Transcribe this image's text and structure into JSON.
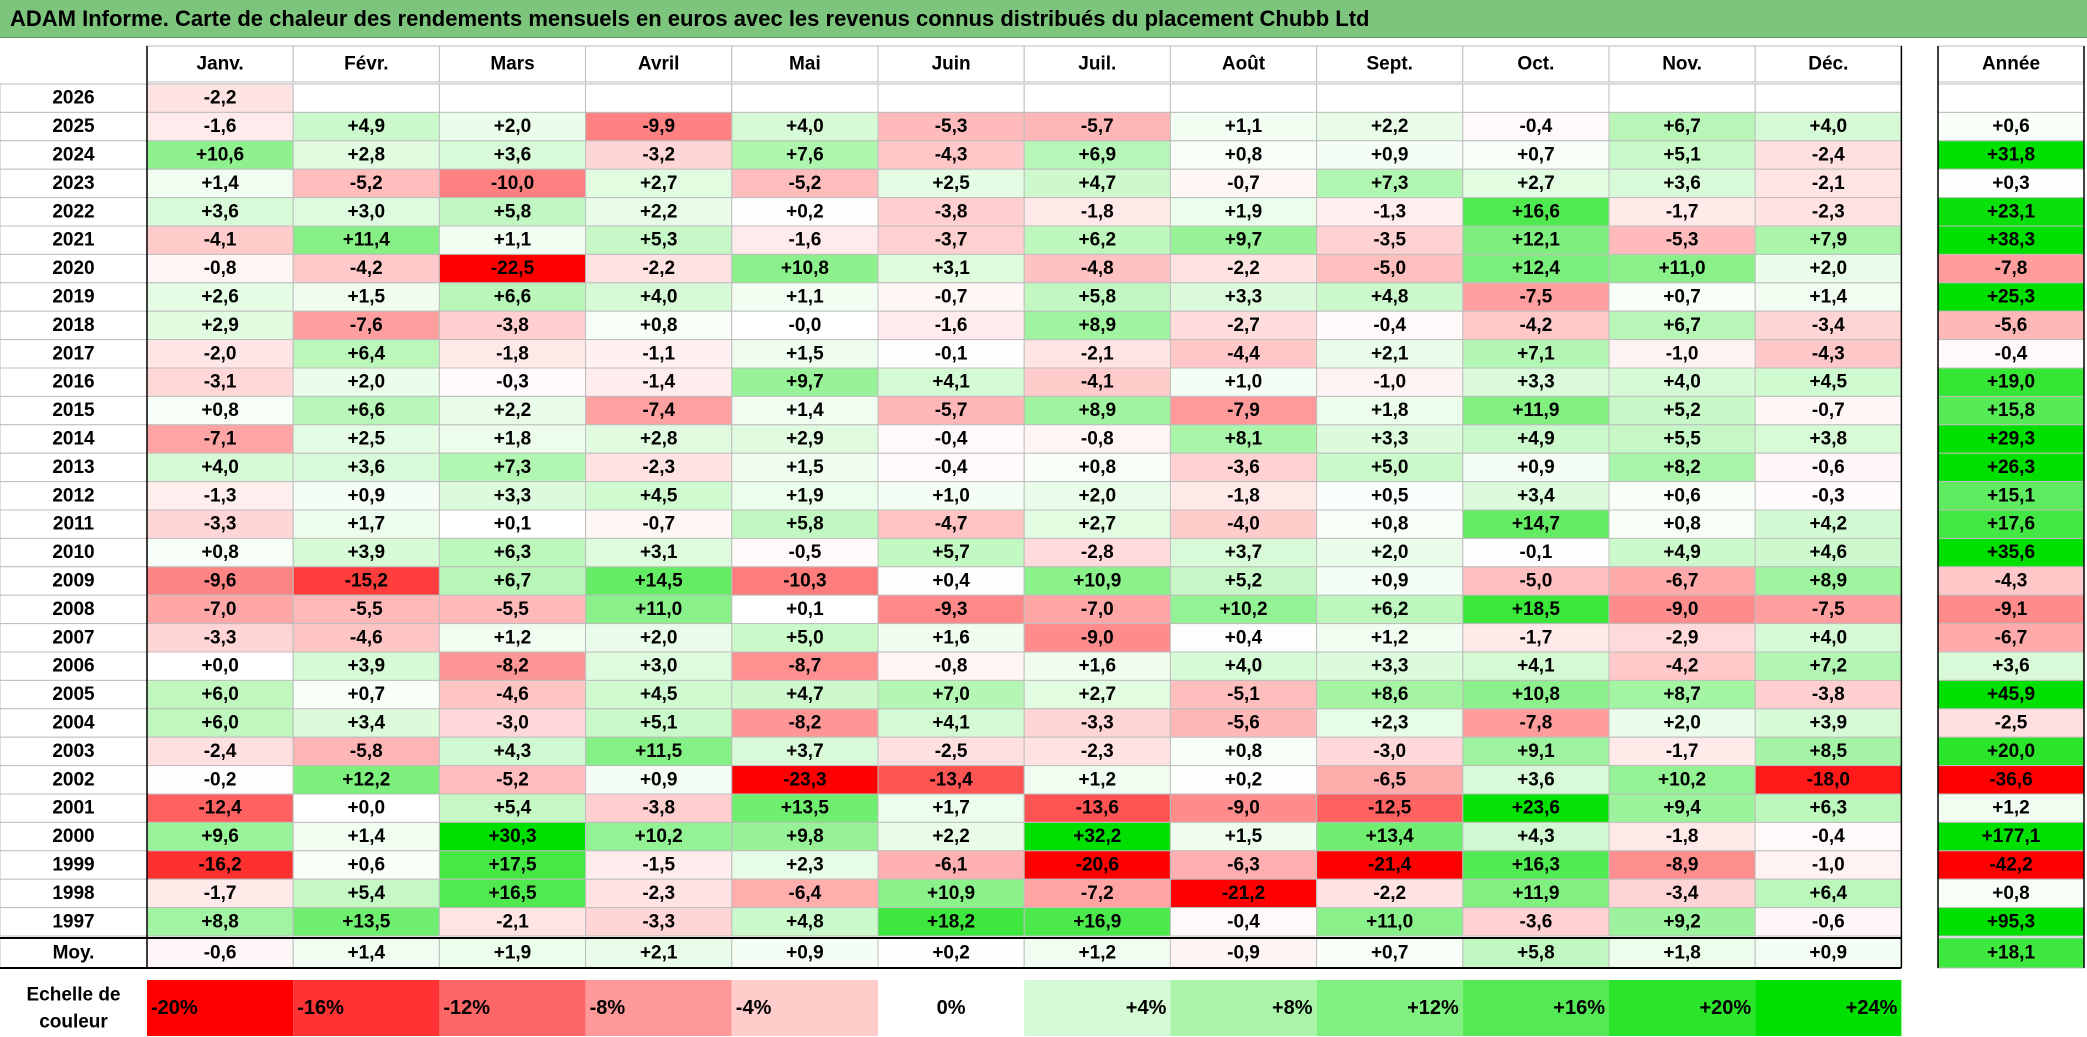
{
  "title": "ADAM Informe. Carte de chaleur des rendements mensuels en euros avec les revenus connus distribués du placement Chubb Ltd",
  "chart_data": {
    "type": "heatmap",
    "columns": [
      "Janv.",
      "Févr.",
      "Mars",
      "Avril",
      "Mai",
      "Juin",
      "Juil.",
      "Août",
      "Sept.",
      "Oct.",
      "Nov.",
      "Déc."
    ],
    "annual_header": "Année",
    "years": [
      "2026",
      "2025",
      "2024",
      "2023",
      "2022",
      "2021",
      "2020",
      "2019",
      "2018",
      "2017",
      "2016",
      "2015",
      "2014",
      "2013",
      "2012",
      "2011",
      "2010",
      "2009",
      "2008",
      "2007",
      "2006",
      "2005",
      "2004",
      "2003",
      "2002",
      "2001",
      "2000",
      "1999",
      "1998",
      "1997"
    ],
    "values": [
      [
        "-2,2",
        "",
        "",
        "",
        "",
        "",
        "",
        "",
        "",
        "",
        "",
        ""
      ],
      [
        "-1,6",
        "+4,9",
        "+2,0",
        "-9,9",
        "+4,0",
        "-5,3",
        "-5,7",
        "+1,1",
        "+2,2",
        "-0,4",
        "+6,7",
        "+4,0"
      ],
      [
        "+10,6",
        "+2,8",
        "+3,6",
        "-3,2",
        "+7,6",
        "-4,3",
        "+6,9",
        "+0,8",
        "+0,9",
        "+0,7",
        "+5,1",
        "-2,4"
      ],
      [
        "+1,4",
        "-5,2",
        "-10,0",
        "+2,7",
        "-5,2",
        "+2,5",
        "+4,7",
        "-0,7",
        "+7,3",
        "+2,7",
        "+3,6",
        "-2,1"
      ],
      [
        "+3,6",
        "+3,0",
        "+5,8",
        "+2,2",
        "+0,2",
        "-3,8",
        "-1,8",
        "+1,9",
        "-1,3",
        "+16,6",
        "-1,7",
        "-2,3"
      ],
      [
        "-4,1",
        "+11,4",
        "+1,1",
        "+5,3",
        "-1,6",
        "-3,7",
        "+6,2",
        "+9,7",
        "-3,5",
        "+12,1",
        "-5,3",
        "+7,9"
      ],
      [
        "-0,8",
        "-4,2",
        "-22,5",
        "-2,2",
        "+10,8",
        "+3,1",
        "-4,8",
        "-2,2",
        "-5,0",
        "+12,4",
        "+11,0",
        "+2,0"
      ],
      [
        "+2,6",
        "+1,5",
        "+6,6",
        "+4,0",
        "+1,1",
        "-0,7",
        "+5,8",
        "+3,3",
        "+4,8",
        "-7,5",
        "+0,7",
        "+1,4"
      ],
      [
        "+2,9",
        "-7,6",
        "-3,8",
        "+0,8",
        "-0,0",
        "-1,6",
        "+8,9",
        "-2,7",
        "-0,4",
        "-4,2",
        "+6,7",
        "-3,4"
      ],
      [
        "-2,0",
        "+6,4",
        "-1,8",
        "-1,1",
        "+1,5",
        "-0,1",
        "-2,1",
        "-4,4",
        "+2,1",
        "+7,1",
        "-1,0",
        "-4,3"
      ],
      [
        "-3,1",
        "+2,0",
        "-0,3",
        "-1,4",
        "+9,7",
        "+4,1",
        "-4,1",
        "+1,0",
        "-1,0",
        "+3,3",
        "+4,0",
        "+4,5"
      ],
      [
        "+0,8",
        "+6,6",
        "+2,2",
        "-7,4",
        "+1,4",
        "-5,7",
        "+8,9",
        "-7,9",
        "+1,8",
        "+11,9",
        "+5,2",
        "-0,7"
      ],
      [
        "-7,1",
        "+2,5",
        "+1,8",
        "+2,8",
        "+2,9",
        "-0,4",
        "-0,8",
        "+8,1",
        "+3,3",
        "+4,9",
        "+5,5",
        "+3,8"
      ],
      [
        "+4,0",
        "+3,6",
        "+7,3",
        "-2,3",
        "+1,5",
        "-0,4",
        "+0,8",
        "-3,6",
        "+5,0",
        "+0,9",
        "+8,2",
        "-0,6"
      ],
      [
        "-1,3",
        "+0,9",
        "+3,3",
        "+4,5",
        "+1,9",
        "+1,0",
        "+2,0",
        "-1,8",
        "+0,5",
        "+3,4",
        "+0,6",
        "-0,3"
      ],
      [
        "-3,3",
        "+1,7",
        "+0,1",
        "-0,7",
        "+5,8",
        "-4,7",
        "+2,7",
        "-4,0",
        "+0,8",
        "+14,7",
        "+0,8",
        "+4,2"
      ],
      [
        "+0,8",
        "+3,9",
        "+6,3",
        "+3,1",
        "-0,5",
        "+5,7",
        "-2,8",
        "+3,7",
        "+2,0",
        "-0,1",
        "+4,9",
        "+4,6"
      ],
      [
        "-9,6",
        "-15,2",
        "+6,7",
        "+14,5",
        "-10,3",
        "+0,4",
        "+10,9",
        "+5,2",
        "+0,9",
        "-5,0",
        "-6,7",
        "+8,9"
      ],
      [
        "-7,0",
        "-5,5",
        "-5,5",
        "+11,0",
        "+0,1",
        "-9,3",
        "-7,0",
        "+10,2",
        "+6,2",
        "+18,5",
        "-9,0",
        "-7,5"
      ],
      [
        "-3,3",
        "-4,6",
        "+1,2",
        "+2,0",
        "+5,0",
        "+1,6",
        "-9,0",
        "+0,4",
        "+1,2",
        "-1,7",
        "-2,9",
        "+4,0"
      ],
      [
        "+0,0",
        "+3,9",
        "-8,2",
        "+3,0",
        "-8,7",
        "-0,8",
        "+1,6",
        "+4,0",
        "+3,3",
        "+4,1",
        "-4,2",
        "+7,2"
      ],
      [
        "+6,0",
        "+0,7",
        "-4,6",
        "+4,5",
        "+4,7",
        "+7,0",
        "+2,7",
        "-5,1",
        "+8,6",
        "+10,8",
        "+8,7",
        "-3,8"
      ],
      [
        "+6,0",
        "+3,4",
        "-3,0",
        "+5,1",
        "-8,2",
        "+4,1",
        "-3,3",
        "-5,6",
        "+2,3",
        "-7,8",
        "+2,0",
        "+3,9"
      ],
      [
        "-2,4",
        "-5,8",
        "+4,3",
        "+11,5",
        "+3,7",
        "-2,5",
        "-2,3",
        "+0,8",
        "-3,0",
        "+9,1",
        "-1,7",
        "+8,5"
      ],
      [
        "-0,2",
        "+12,2",
        "-5,2",
        "+0,9",
        "-23,3",
        "-13,4",
        "+1,2",
        "+0,2",
        "-6,5",
        "+3,6",
        "+10,2",
        "-18,0"
      ],
      [
        "-12,4",
        "+0,0",
        "+5,4",
        "-3,8",
        "+13,5",
        "+1,7",
        "-13,6",
        "-9,0",
        "-12,5",
        "+23,6",
        "+9,4",
        "+6,3"
      ],
      [
        "+9,6",
        "+1,4",
        "+30,3",
        "+10,2",
        "+9,8",
        "+2,2",
        "+32,2",
        "+1,5",
        "+13,4",
        "+4,3",
        "-1,8",
        "-0,4"
      ],
      [
        "-16,2",
        "+0,6",
        "+17,5",
        "-1,5",
        "+2,3",
        "-6,1",
        "-20,6",
        "-6,3",
        "-21,4",
        "+16,3",
        "-8,9",
        "-1,0"
      ],
      [
        "-1,7",
        "+5,4",
        "+16,5",
        "-2,3",
        "-6,4",
        "+10,9",
        "-7,2",
        "-21,2",
        "-2,2",
        "+11,9",
        "-3,4",
        "+6,4"
      ],
      [
        "+8,8",
        "+13,5",
        "-2,1",
        "-3,3",
        "+4,8",
        "+18,2",
        "+16,9",
        "-0,4",
        "+11,0",
        "-3,6",
        "+9,2",
        "-0,6"
      ]
    ],
    "annual": [
      "",
      "+0,6",
      "+31,8",
      "+0,3",
      "+23,1",
      "+38,3",
      "-7,8",
      "+25,3",
      "-5,6",
      "-0,4",
      "+19,0",
      "+15,8",
      "+29,3",
      "+26,3",
      "+15,1",
      "+17,6",
      "+35,6",
      "-4,3",
      "-9,1",
      "-6,7",
      "+3,6",
      "+45,9",
      "-2,5",
      "+20,0",
      "-36,6",
      "+1,2",
      "+177,1",
      "-42,2",
      "+0,8",
      "+95,3"
    ],
    "average_label": "Moy.",
    "average": [
      "-0,6",
      "+1,4",
      "+1,9",
      "+2,1",
      "+0,9",
      "+0,2",
      "+1,2",
      "-0,9",
      "+0,7",
      "+5,8",
      "+1,8",
      "+0,9"
    ],
    "average_annual": "+18,1",
    "scale_label_line1": "Echelle de",
    "scale_label_line2": "couleur",
    "scale": [
      "-20%",
      "-16%",
      "-12%",
      "-8%",
      "-4%",
      "0%",
      "+4%",
      "+8%",
      "+12%",
      "+16%",
      "+20%",
      "+24%"
    ],
    "colors": {
      "negative": "#ff0000",
      "neutral": "#ffffff",
      "positive": "#00e000",
      "title_bg": "#7dc47d"
    }
  }
}
